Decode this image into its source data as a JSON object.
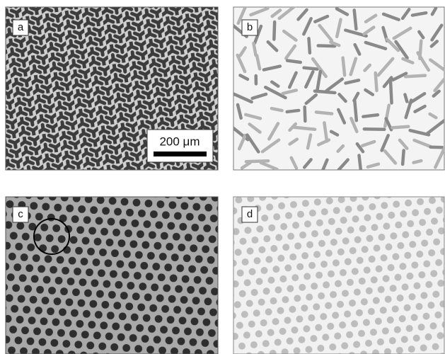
{
  "panels": [
    {
      "label": "a"
    },
    {
      "label": "b"
    },
    {
      "label": "c"
    },
    {
      "label": "d"
    }
  ],
  "scale_bar": {
    "label": "200 μm"
  }
}
